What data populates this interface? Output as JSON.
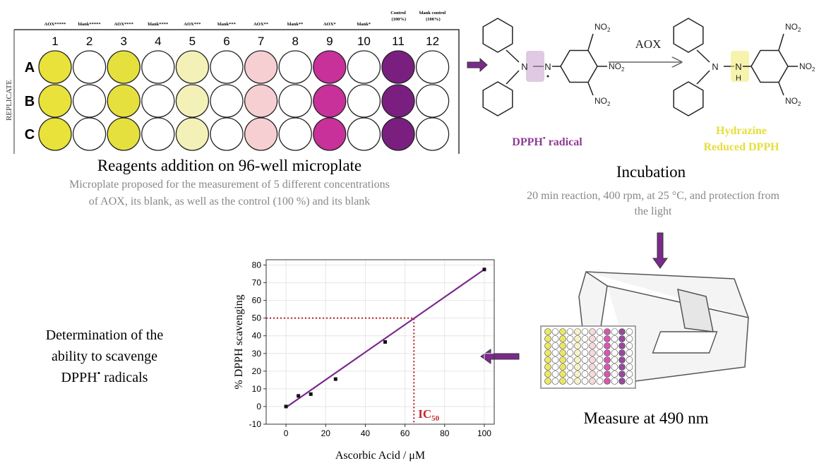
{
  "plate": {
    "columns": [
      {
        "header": "AOX*****",
        "number": 1,
        "color": "#e8e23a"
      },
      {
        "header": "blank*****",
        "number": 2,
        "color": "#ffffff"
      },
      {
        "header": "AOX****",
        "number": 3,
        "color": "#e6e03e"
      },
      {
        "header": "blank****",
        "number": 4,
        "color": "#ffffff"
      },
      {
        "header": "AOX***",
        "number": 5,
        "color": "#f4f1b8"
      },
      {
        "header": "blank***",
        "number": 6,
        "color": "#ffffff"
      },
      {
        "header": "AOX**",
        "number": 7,
        "color": "#f6cfd2"
      },
      {
        "header": "blank**",
        "number": 8,
        "color": "#ffffff"
      },
      {
        "header": "AOX*",
        "number": 9,
        "color": "#c8309a"
      },
      {
        "header": "blank*",
        "number": 10,
        "color": "#ffffff"
      },
      {
        "header": "Control (100%)",
        "number": 11,
        "color": "#7a1f80"
      },
      {
        "header": "blank control (100%)",
        "number": 12,
        "color": "#ffffff"
      }
    ],
    "rows": [
      "A",
      "B",
      "C"
    ],
    "side_label": "REPLICATE",
    "title": "Reagents addition on 96-well microplate",
    "description": [
      "Microplate proposed for the measurement of 5 different concentrations",
      "of AOX, its blank, as well as the control (100 %) and its blank"
    ]
  },
  "reaction": {
    "nitro": {
      "main": "NO",
      "sub": "2"
    },
    "atom_n": "N",
    "atom_h": "H",
    "arrow_label": "AOX",
    "reactant": {
      "name": "DPPH",
      "superscript": "•",
      "suffix": " radical"
    },
    "product": [
      "Hydrazine",
      "Reduced DPPH"
    ]
  },
  "incubation": {
    "title": "Incubation",
    "description": [
      "20 min reaction, 400 rpm, at 25 °C, and protection from",
      "the light"
    ]
  },
  "measure": {
    "title": "Measure at 490 nm"
  },
  "determination": {
    "lines": [
      "Determination of the",
      "ability to scavenge"
    ],
    "last": {
      "name": "DPPH",
      "superscript": "•",
      "suffix": " radicals"
    }
  },
  "chart_data": {
    "type": "scatter",
    "x_label": "Ascorbic Acid / μM",
    "y_label": "% DPPH scavenging",
    "x": [
      0,
      6.25,
      12.5,
      25,
      50,
      100
    ],
    "values": [
      0,
      6,
      7,
      15.5,
      36.5,
      77.5
    ],
    "color": "#111111",
    "fit": {
      "x": [
        0,
        100
      ],
      "values": [
        -0.5,
        77.5
      ],
      "color": "#7b2a8c"
    },
    "ic50": {
      "x": 64.5,
      "y": 50,
      "label": "IC",
      "sub": "50",
      "color": "#c0272d"
    },
    "xlim": [
      -10,
      105
    ],
    "ylim": [
      -10,
      83
    ],
    "xticks": [
      0,
      20,
      40,
      60,
      80,
      100
    ],
    "yticks": [
      -10,
      0,
      10,
      20,
      30,
      40,
      50,
      60,
      70,
      80
    ],
    "grid": true
  }
}
